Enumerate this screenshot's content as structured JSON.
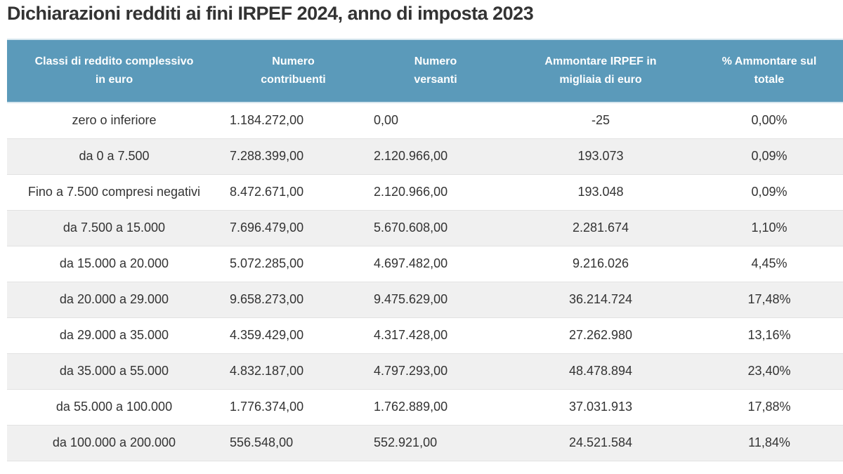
{
  "title": "Dichiarazioni redditi ai fini IRPEF 2024, anno di imposta 2023",
  "table": {
    "headers": [
      "Classi di reddito complessivo\nin euro",
      "Numero\ncontribuenti",
      "Numero\nversanti",
      "Ammontare IRPEF in\nmigliaia di euro",
      "% Ammontare sul\ntotale"
    ],
    "rows": [
      [
        "zero o inferiore",
        "1.184.272,00",
        "0,00",
        "-25",
        "0,00%"
      ],
      [
        "da 0 a 7.500",
        "7.288.399,00",
        "2.120.966,00",
        "193.073",
        "0,09%"
      ],
      [
        "Fino a 7.500 compresi negativi",
        "8.472.671,00",
        "2.120.966,00",
        "193.048",
        "0,09%"
      ],
      [
        "da 7.500 a 15.000",
        "7.696.479,00",
        "5.670.608,00",
        "2.281.674",
        "1,10%"
      ],
      [
        "da 15.000 a 20.000",
        "5.072.285,00",
        "4.697.482,00",
        "9.216.026",
        "4,45%"
      ],
      [
        "da 20.000 a 29.000",
        "9.658.273,00",
        "9.475.629,00",
        "36.214.724",
        "17,48%"
      ],
      [
        "da 29.000 a 35.000",
        "4.359.429,00",
        "4.317.428,00",
        "27.262.980",
        "13,16%"
      ],
      [
        "da 35.000 a 55.000",
        "4.832.187,00",
        "4.797.293,00",
        "48.478.894",
        "23,40%"
      ],
      [
        "da 55.000 a 100.000",
        "1.776.374,00",
        "1.762.889,00",
        "37.031.913",
        "17,88%"
      ],
      [
        "da 100.000 a 200.000",
        "556.548,00",
        "552.921,00",
        "24.521.584",
        "11,84%"
      ]
    ]
  },
  "colors": {
    "header_bg": "#5b9aba",
    "alt_row": "#f0f0f0"
  }
}
